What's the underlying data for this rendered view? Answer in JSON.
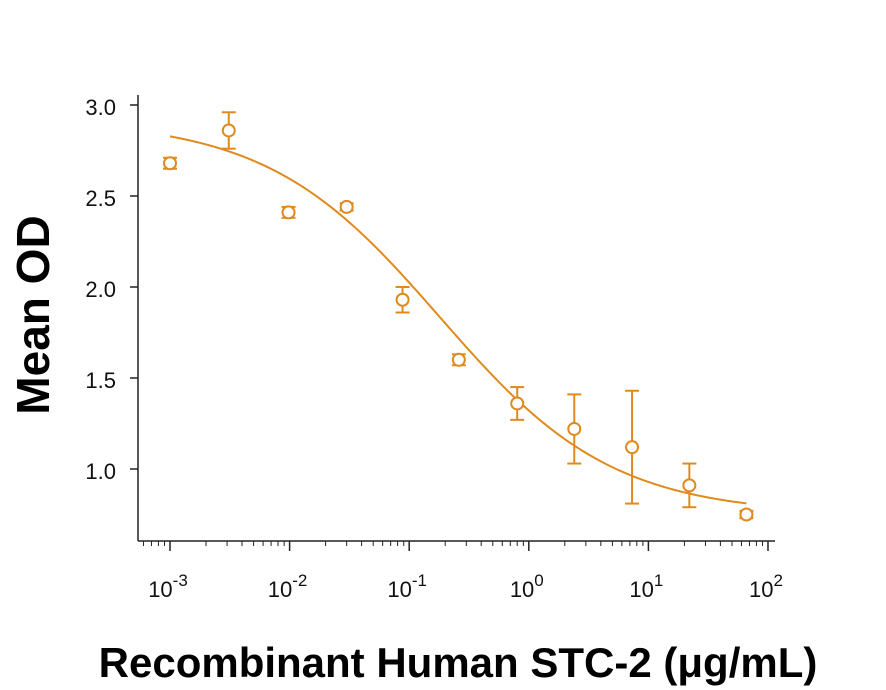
{
  "chart_data": {
    "type": "scatter",
    "title": "",
    "xlabel": "Recombinant Human STC-2 (μg/mL)",
    "ylabel": "Mean OD",
    "x_scale": "log",
    "xlim": [
      0.0007,
      100
    ],
    "ylim": [
      0.6,
      3.05
    ],
    "x_ticks": [
      {
        "value": 0.001,
        "base": "10",
        "exp": "-3"
      },
      {
        "value": 0.01,
        "base": "10",
        "exp": "-2"
      },
      {
        "value": 0.1,
        "base": "10",
        "exp": "-1"
      },
      {
        "value": 1,
        "base": "10",
        "exp": "0"
      },
      {
        "value": 10,
        "base": "10",
        "exp": "1"
      },
      {
        "value": 100,
        "base": "10",
        "exp": "2"
      }
    ],
    "y_ticks": [
      {
        "value": 1.0,
        "label": "1.0"
      },
      {
        "value": 1.5,
        "label": "1.5"
      },
      {
        "value": 2.0,
        "label": "2.0"
      },
      {
        "value": 2.5,
        "label": "2.5"
      },
      {
        "value": 3.0,
        "label": "3.0"
      }
    ],
    "grid": false,
    "color": "#E08A1E",
    "points": [
      {
        "x": 0.001,
        "y": 2.68,
        "err": 0.03
      },
      {
        "x": 0.0031,
        "y": 2.86,
        "err": 0.1
      },
      {
        "x": 0.0098,
        "y": 2.41,
        "err": 0.03
      },
      {
        "x": 0.03,
        "y": 2.44,
        "err": 0.02
      },
      {
        "x": 0.088,
        "y": 1.93,
        "err": 0.07
      },
      {
        "x": 0.26,
        "y": 1.6,
        "err": 0.03
      },
      {
        "x": 0.8,
        "y": 1.36,
        "err": 0.09
      },
      {
        "x": 2.4,
        "y": 1.22,
        "err": 0.19
      },
      {
        "x": 7.3,
        "y": 1.12,
        "err": 0.31
      },
      {
        "x": 22,
        "y": 0.91,
        "err": 0.12
      },
      {
        "x": 66,
        "y": 0.75,
        "err": 0.02
      }
    ],
    "fit": {
      "model": "4PL",
      "top": 2.92,
      "bottom": 0.75,
      "ec50": 0.18,
      "hill": 0.6,
      "x_range": [
        0.001,
        66
      ]
    }
  }
}
